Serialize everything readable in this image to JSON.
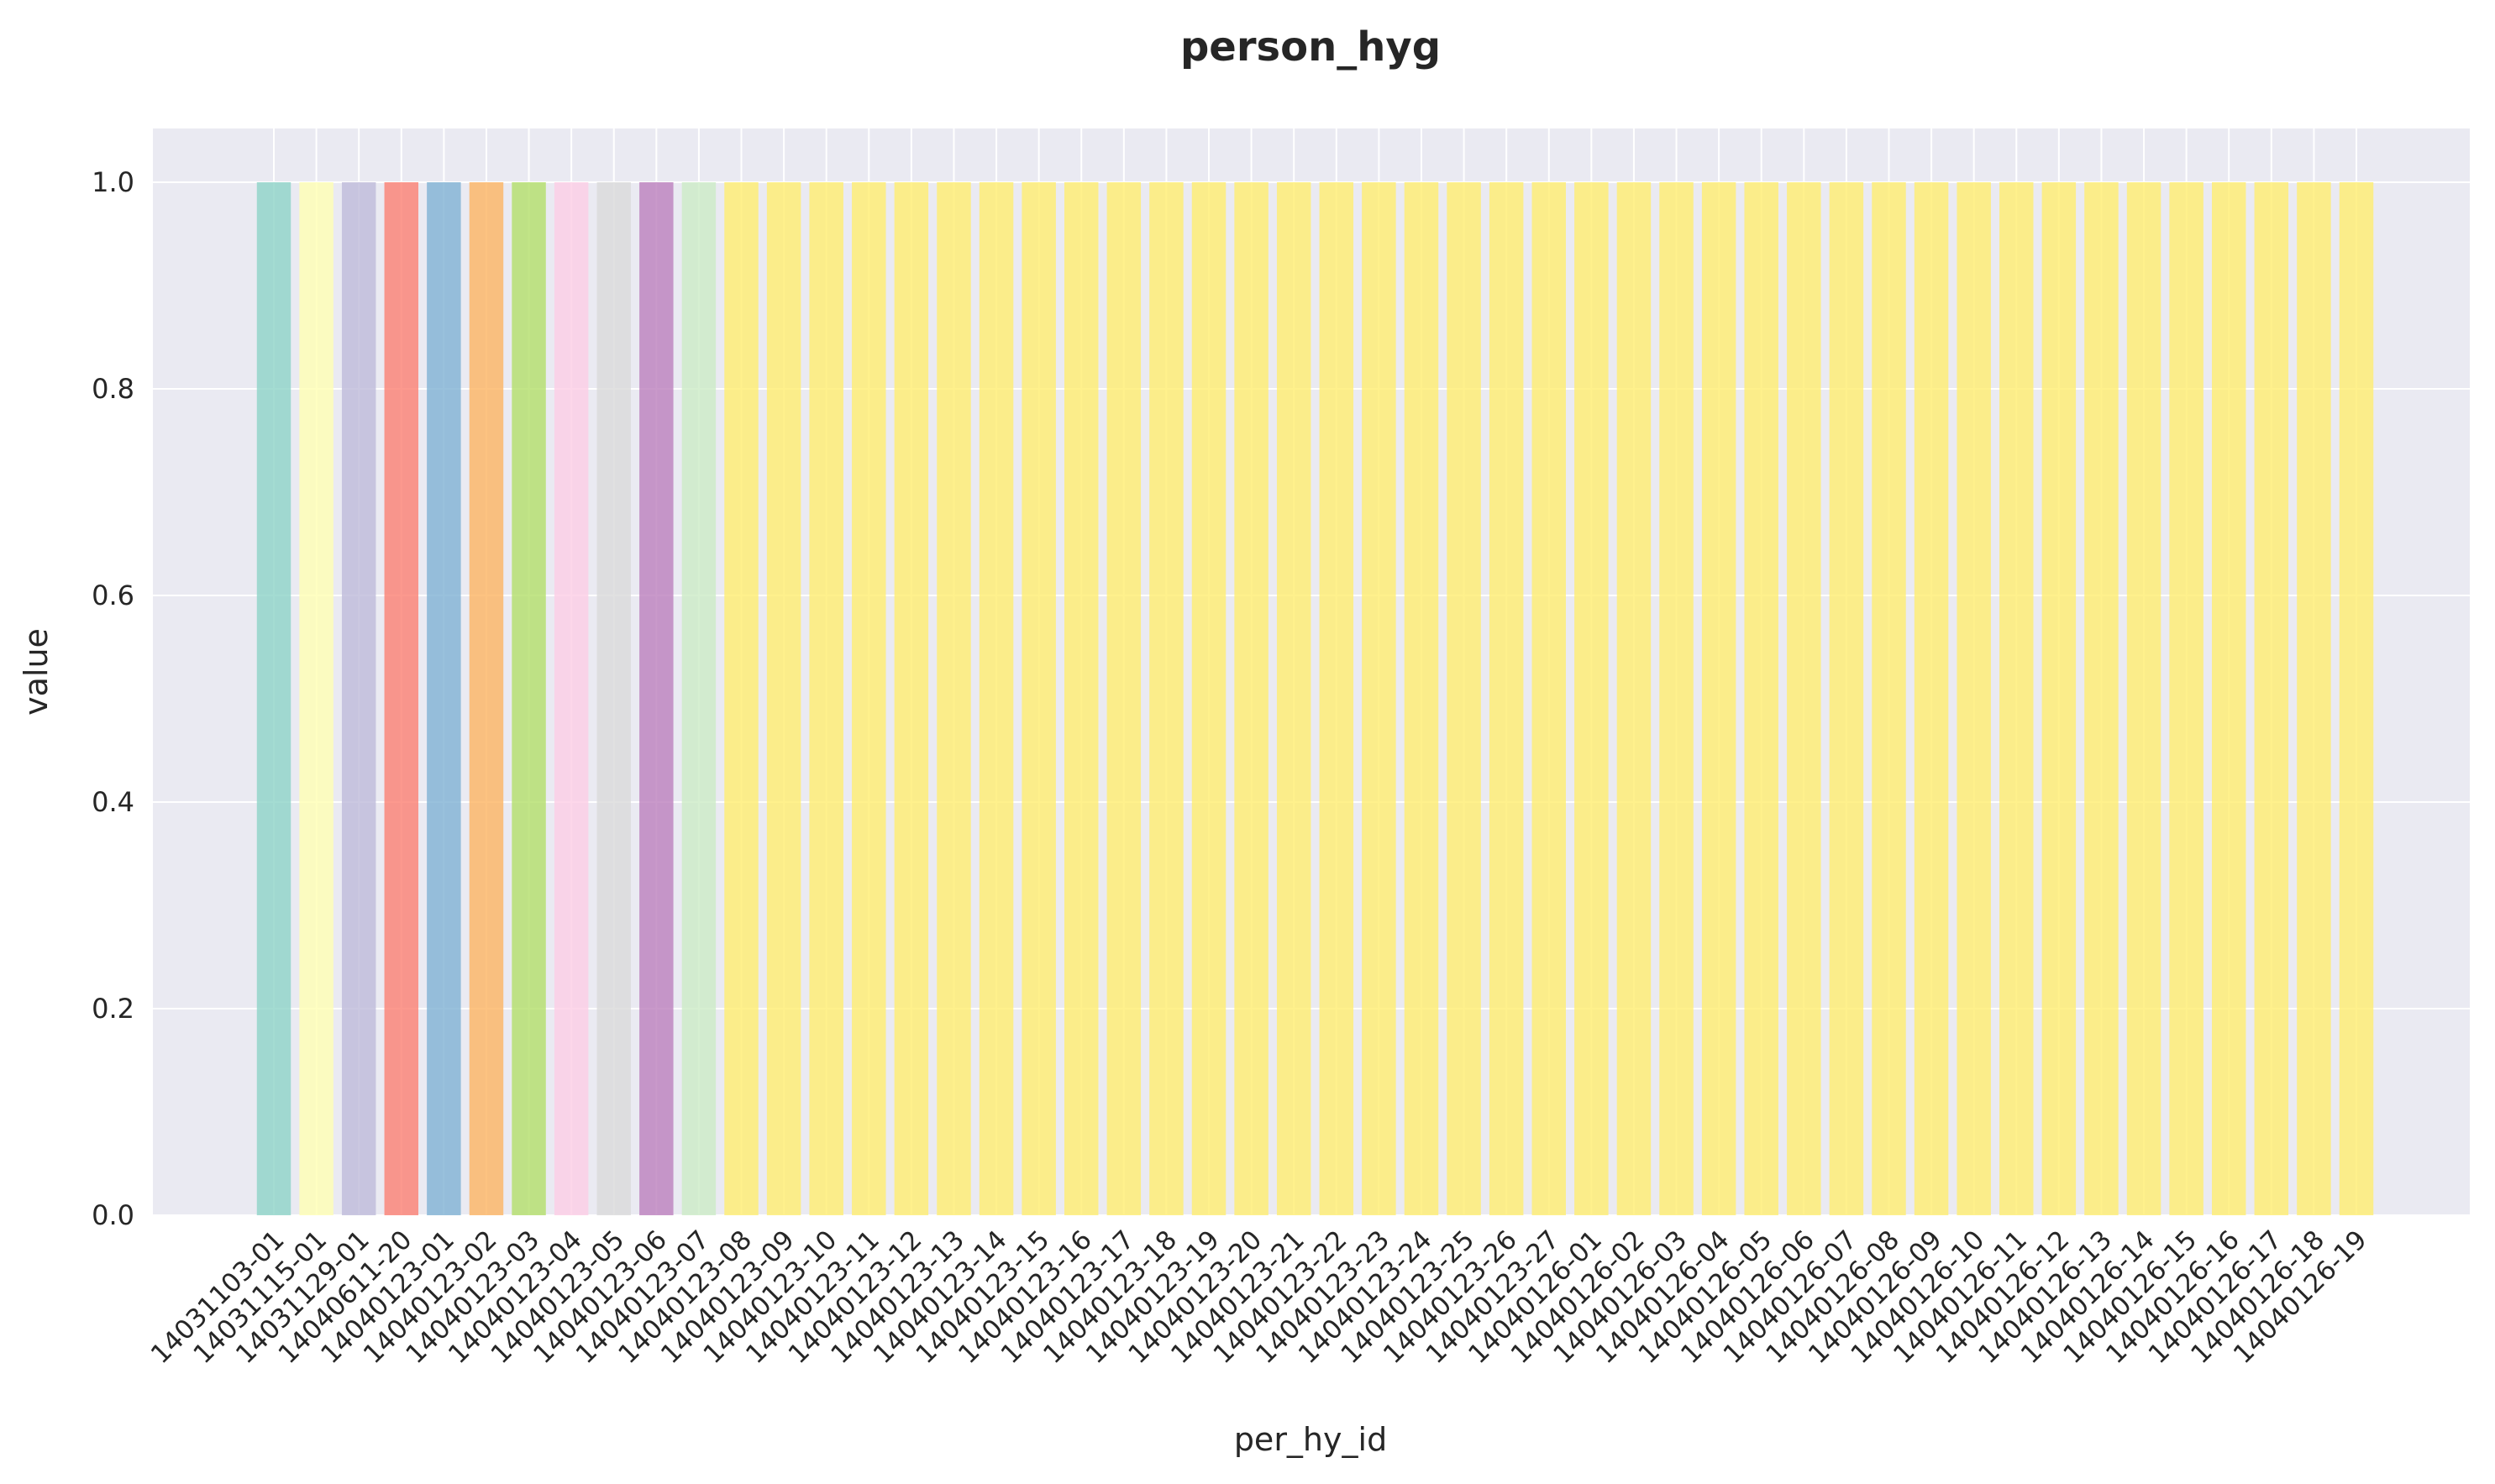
{
  "chart_data": {
    "type": "bar",
    "title": "person_hyg",
    "xlabel": "per_hy_id",
    "ylabel": "value",
    "ylim": [
      0,
      1.05
    ],
    "yticks": [
      "0.0",
      "0.2",
      "0.4",
      "0.6",
      "0.8",
      "1.0"
    ],
    "grid": true,
    "categories": [
      "14031103-01",
      "14031115-01",
      "14031129-01",
      "14040611-20",
      "14040123-01",
      "14040123-02",
      "14040123-03",
      "14040123-04",
      "14040123-05",
      "14040123-06",
      "14040123-07",
      "14040123-08",
      "14040123-09",
      "14040123-10",
      "14040123-11",
      "14040123-12",
      "14040123-13",
      "14040123-14",
      "14040123-15",
      "14040123-16",
      "14040123-17",
      "14040123-18",
      "14040123-19",
      "14040123-20",
      "14040123-21",
      "14040123-22",
      "14040123-23",
      "14040123-24",
      "14040123-25",
      "14040123-26",
      "14040123-27",
      "14040126-01",
      "14040126-02",
      "14040126-03",
      "14040126-04",
      "14040126-05",
      "14040126-06",
      "14040126-07",
      "14040126-08",
      "14040126-09",
      "14040126-10",
      "14040126-11",
      "14040126-12",
      "14040126-13",
      "14040126-14",
      "14040126-15",
      "14040126-16",
      "14040126-17",
      "14040126-18",
      "14040126-19"
    ],
    "values": [
      1,
      1,
      1,
      1,
      1,
      1,
      1,
      1,
      1,
      1,
      1,
      1,
      1,
      1,
      1,
      1,
      1,
      1,
      1,
      1,
      1,
      1,
      1,
      1,
      1,
      1,
      1,
      1,
      1,
      1,
      1,
      1,
      1,
      1,
      1,
      1,
      1,
      1,
      1,
      1,
      1,
      1,
      1,
      1,
      1,
      1,
      1,
      1,
      1,
      1
    ],
    "colors": [
      "#8dd3c7",
      "#ffffb3",
      "#bebada",
      "#fb8072",
      "#80b1d3",
      "#fdb462",
      "#b3de69",
      "#fccde5",
      "#d9d9d9",
      "#bc80bd",
      "#ccebc5",
      "#ffed6f"
    ],
    "background": "#eaeaf2",
    "grid_color": "#ffffff"
  }
}
